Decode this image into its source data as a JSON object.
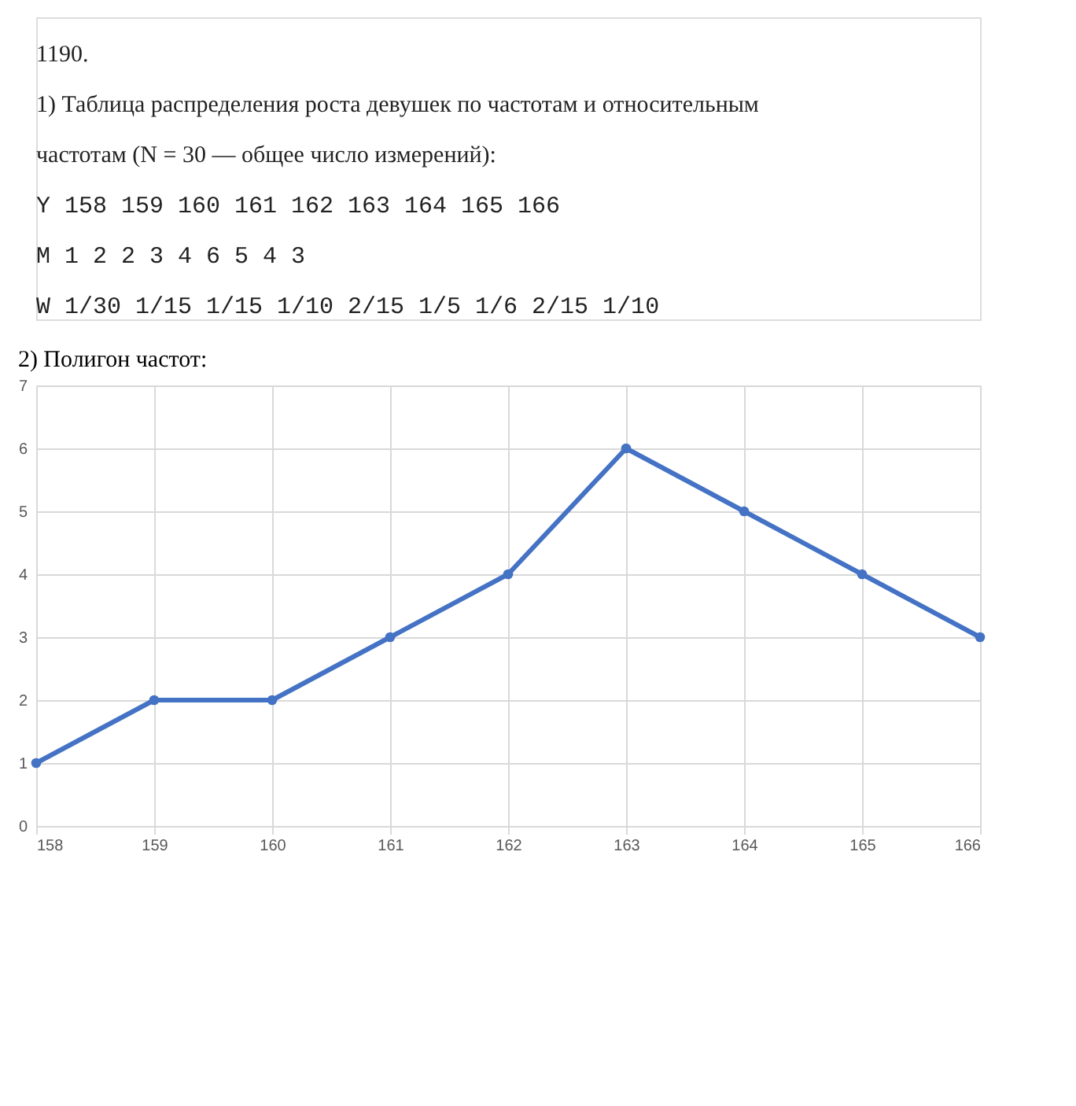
{
  "chart_data": {
    "type": "line",
    "title": "2) Полигон частот:",
    "annotations": [
      "1190.",
      "1) Таблица распределения роста девушек по частотам и относительным",
      "частотам (N = 30 — общее число измерений):",
      "Y   158   159   160   161   162   163   164   165   166",
      "M     1     2     2     3     4     6     5     4     3",
      "W  1/30  1/15  1/15  1/10  2/15   1/5   1/6  2/15  1/10"
    ],
    "x": [
      158,
      159,
      160,
      161,
      162,
      163,
      164,
      165,
      166
    ],
    "series": [
      {
        "color": "#4472c4",
        "values": [
          1,
          2,
          2,
          3,
          4,
          6,
          5,
          4,
          3
        ]
      }
    ],
    "xlim": [
      158,
      166
    ],
    "xticks": [
      158,
      159,
      160,
      161,
      162,
      163,
      164,
      165,
      166
    ],
    "ylim": [
      0,
      7
    ],
    "yticks": [
      0,
      1,
      2,
      3,
      4,
      5,
      6,
      7
    ],
    "grid": true,
    "marker": "circle",
    "line_style": "solid",
    "legend": false
  }
}
